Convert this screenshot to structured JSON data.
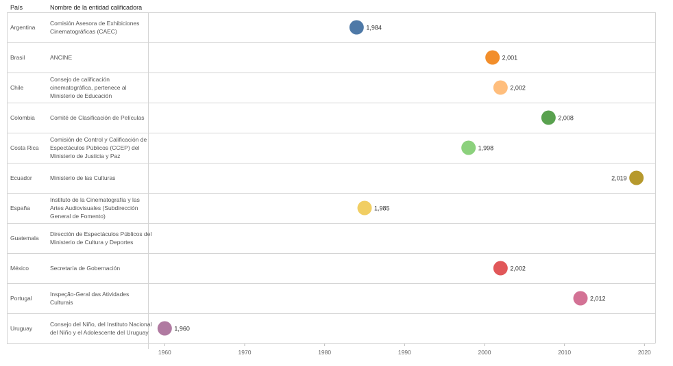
{
  "headers": {
    "pais": "País",
    "entidad": "Nombre de la entidad calificadora"
  },
  "chart_data": {
    "type": "scatter",
    "x_ticks": [
      1960,
      1970,
      1980,
      1990,
      2000,
      2010,
      2020
    ],
    "xlim": [
      1958,
      2021
    ],
    "grid": false,
    "rows": [
      {
        "pais": "Argentina",
        "entidad": "Comisión Asesora de Exhibiciones Cinematográficas (CAEC)",
        "year": 1984,
        "label": "1,984",
        "color": "#4e79a7",
        "label_side": "right"
      },
      {
        "pais": "Brasil",
        "entidad": "ANCINE",
        "year": 2001,
        "label": "2,001",
        "color": "#f28e2b",
        "label_side": "right"
      },
      {
        "pais": "Chile",
        "entidad": "Consejo de calificación cinematográfica, pertenece al Ministerio de Educación",
        "year": 2002,
        "label": "2,002",
        "color": "#ffbe7d",
        "label_side": "right"
      },
      {
        "pais": "Colombia",
        "entidad": "Comité de Clasificación de Películas",
        "year": 2008,
        "label": "2,008",
        "color": "#59a14f",
        "label_side": "right"
      },
      {
        "pais": "Costa Rica",
        "entidad": "Comisión de Control y Calificación de Espectáculos Públicos (CCEP) del Ministerio de Justicia y Paz",
        "year": 1998,
        "label": "1,998",
        "color": "#8cd17d",
        "label_side": "right"
      },
      {
        "pais": "Ecuador",
        "entidad": "Ministerio de las Culturas",
        "year": 2019,
        "label": "2,019",
        "color": "#b6992d",
        "label_side": "left"
      },
      {
        "pais": "España",
        "entidad": "Instituto de la Cinematografía y las Artes Audiovisuales (Subdirección General de Fomento)",
        "year": 1985,
        "label": "1,985",
        "color": "#f1ce63",
        "label_side": "right"
      },
      {
        "pais": "Guatemala",
        "entidad": "Dirección de Espectáculos Públicos del Ministerio de Cultura y Deportes",
        "year": null,
        "label": "",
        "color": "",
        "label_side": "right"
      },
      {
        "pais": "México",
        "entidad": "Secretaría de Gobernación",
        "year": 2002,
        "label": "2,002",
        "color": "#e15759",
        "label_side": "right"
      },
      {
        "pais": "Portugal",
        "entidad": "Inspeção-Geral das Atividades Culturais",
        "year": 2012,
        "label": "2,012",
        "color": "#d37295",
        "label_side": "right"
      },
      {
        "pais": "Uruguay",
        "entidad": "Consejo del Niño, del Instituto Nacional del Niño y el Adolescente del Uruguay",
        "year": 1960,
        "label": "1,960",
        "color": "#b07aa1",
        "label_side": "right"
      }
    ]
  }
}
